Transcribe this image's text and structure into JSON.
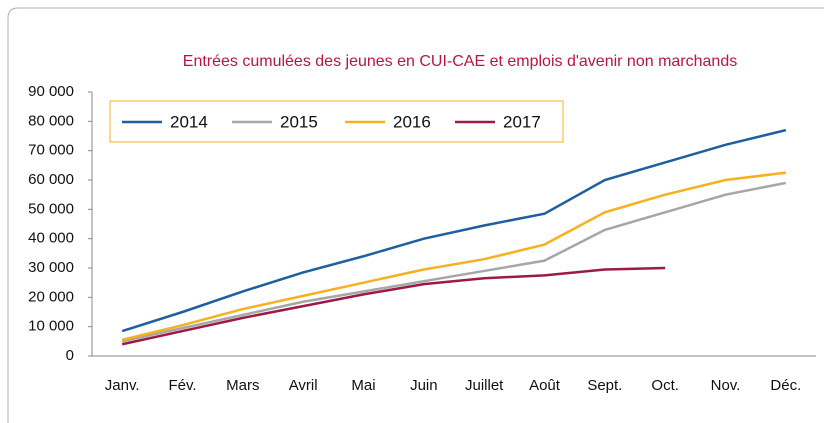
{
  "chart_data": {
    "type": "line",
    "title": "Entrées cumulées des jeunes en CUI-CAE et emplois d'avenir non marchands",
    "categories": [
      "Janv.",
      "Fév.",
      "Mars",
      "Avril",
      "Mai",
      "Juin",
      "Juillet",
      "Août",
      "Sept.",
      "Oct.",
      "Nov.",
      "Déc."
    ],
    "series": [
      {
        "name": "2014",
        "color": "#1f5fa0",
        "values": [
          8500,
          15000,
          22000,
          28500,
          34000,
          40000,
          44500,
          48500,
          60000,
          66000,
          72000,
          77000
        ]
      },
      {
        "name": "2015",
        "color": "#a6a6a6",
        "values": [
          5000,
          9500,
          14000,
          18500,
          22000,
          25500,
          29000,
          32500,
          43000,
          49000,
          55000,
          59000
        ]
      },
      {
        "name": "2016",
        "color": "#f5b120",
        "values": [
          5500,
          10500,
          16000,
          20500,
          25000,
          29500,
          33000,
          38000,
          49000,
          55000,
          60000,
          62500
        ]
      },
      {
        "name": "2017",
        "color": "#9b1b45",
        "values": [
          4000,
          8500,
          13000,
          17000,
          21000,
          24500,
          26500,
          27500,
          29500,
          30000,
          null,
          null
        ]
      }
    ],
    "ylim": [
      0,
      90000
    ],
    "yticks": [
      0,
      {
        "value": 10000,
        "label": "10 000"
      },
      {
        "value": 20000,
        "label": "20 000"
      },
      {
        "value": 30000,
        "label": "30 000"
      },
      {
        "value": 40000,
        "label": "40 000"
      },
      {
        "value": 50000,
        "label": "50 000"
      },
      {
        "value": 60000,
        "label": "60 000"
      },
      {
        "value": 70000,
        "label": "70 000"
      },
      {
        "value": 80000,
        "label": "80 000"
      },
      {
        "value": 90000,
        "label": "90 000"
      }
    ],
    "grid": false,
    "legend": "upper left"
  }
}
